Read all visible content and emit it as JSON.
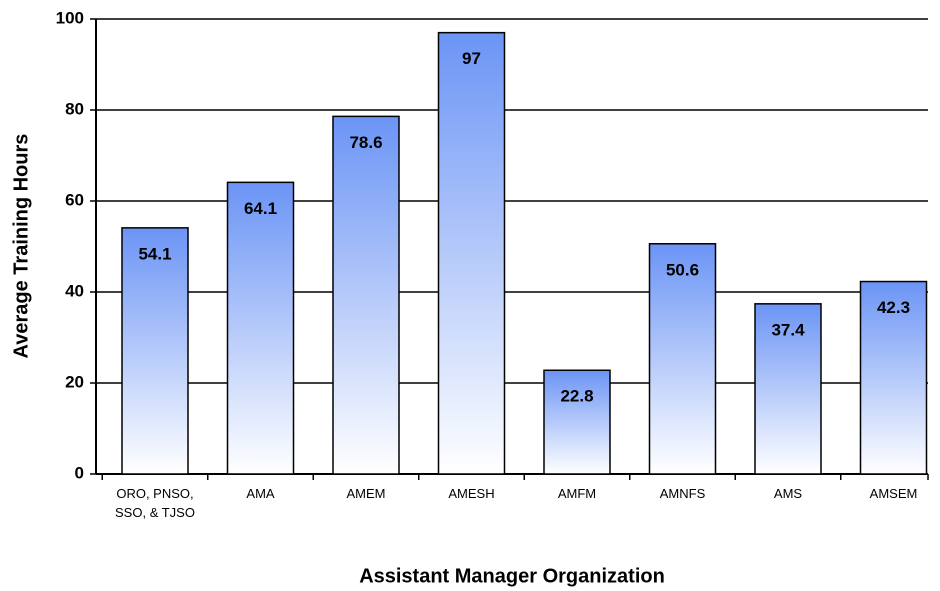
{
  "chart_data": {
    "type": "bar",
    "x_label": "Assistant Manager Organization",
    "y_label": "Average Training Hours",
    "categories": [
      "ORO, PNSO, SSO, & TJSO",
      "AMA",
      "AMEM",
      "AMESH",
      "AMFM",
      "AMNFS",
      "AMS",
      "AMSEM"
    ],
    "values": [
      54.1,
      64.1,
      78.6,
      97.0,
      22.8,
      50.6,
      37.4,
      42.3
    ],
    "color": "#6b94f5",
    "ylim": [
      0,
      100
    ],
    "yticks": [
      0,
      20,
      40,
      60,
      80,
      100
    ],
    "grid": true
  }
}
